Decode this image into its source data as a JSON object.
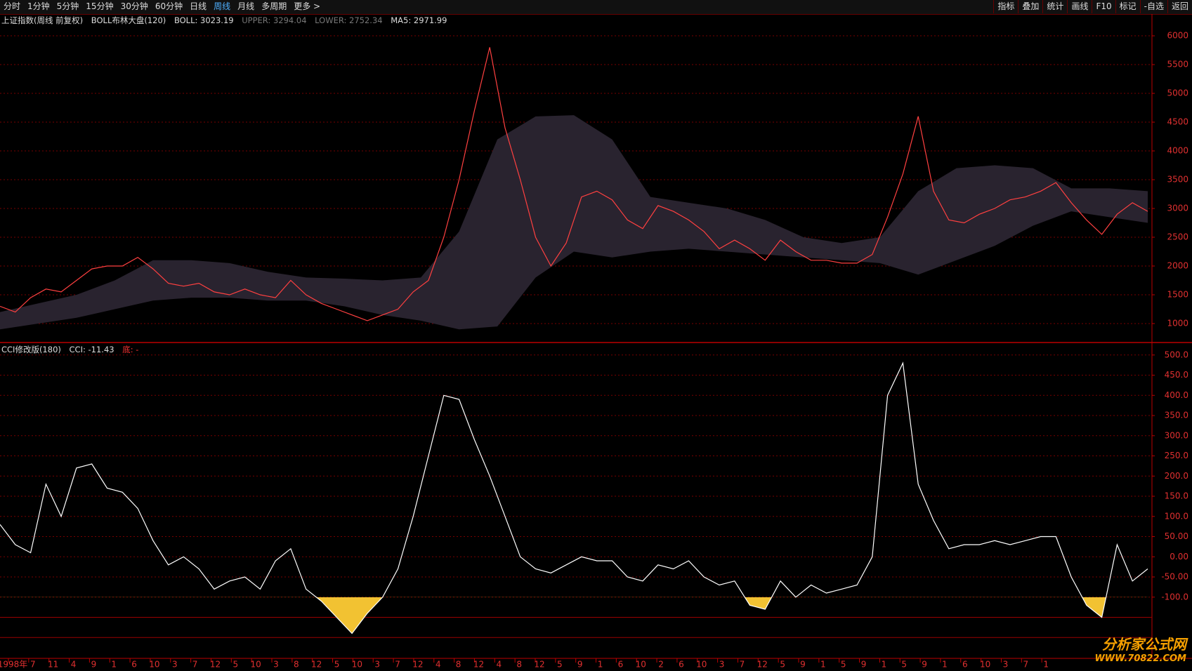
{
  "toolbar": {
    "left": [
      "分时",
      "1分钟",
      "5分钟",
      "15分钟",
      "30分钟",
      "60分钟",
      "日线",
      "周线",
      "月线",
      "多周期",
      "更多 >"
    ],
    "active": 7,
    "right": [
      "指标",
      "叠加",
      "统计",
      "画线",
      "F10",
      "标记",
      "-自选",
      "返回"
    ]
  },
  "upper_info": {
    "name": "上证指数(周线 前复权)",
    "indicator": "BOLL布林大盘(120)",
    "boll": "BOLL: 3023.19",
    "upper": "UPPER: 3294.04",
    "lower": "LOWER: 2752.34",
    "ma5": "MA5: 2971.99"
  },
  "lower_info": {
    "indicator": "CCI修改版(180)",
    "cci": "CCI: -11.43",
    "bottom": "底: -"
  },
  "x_axis": [
    "1998年",
    "7",
    "11",
    "4",
    "9",
    "1",
    "6",
    "10",
    "3",
    "7",
    "12",
    "5",
    "10",
    "3",
    "8",
    "12",
    "5",
    "10",
    "3",
    "7",
    "12",
    "4",
    "8",
    "12",
    "4",
    "8",
    "12",
    "5",
    "9",
    "1",
    "6",
    "10",
    "2",
    "6",
    "10",
    "3",
    "7",
    "12",
    "5",
    "9",
    "1",
    "5",
    "9",
    "1",
    "5",
    "9",
    "1",
    "6",
    "10",
    "3",
    "7",
    "1"
  ],
  "watermark": {
    "title": "分析家公式网",
    "url": "WWW.70822.COM"
  },
  "chart_data": [
    {
      "type": "line",
      "ylim": [
        683,
        6354
      ],
      "yticks": [
        6000,
        5500,
        5000,
        4500,
        4000,
        3500,
        3000,
        2500,
        2000,
        1500,
        1000
      ],
      "grid": true,
      "band": {
        "color": "#29232f",
        "upper": [
          1200,
          1350,
          1500,
          1750,
          2100,
          2100,
          2050,
          1900,
          1800,
          1780,
          1750,
          1800,
          2600,
          4200,
          4600,
          4620,
          4200,
          3200,
          3100,
          3000,
          2800,
          2500,
          2400,
          2500,
          3300,
          3700,
          3750,
          3700,
          3350,
          3350,
          3300
        ],
        "lower": [
          900,
          1000,
          1100,
          1250,
          1400,
          1450,
          1450,
          1400,
          1400,
          1300,
          1150,
          1050,
          900,
          950,
          1800,
          2250,
          2150,
          2250,
          2300,
          2250,
          2200,
          2150,
          2100,
          2050,
          1850,
          2100,
          2350,
          2700,
          2950,
          2850,
          2750
        ]
      },
      "series": [
        {
          "color": "#ff4040",
          "values": [
            1300,
            1200,
            1450,
            1600,
            1550,
            1750,
            1950,
            2000,
            2000,
            2150,
            1950,
            1700,
            1650,
            1700,
            1550,
            1500,
            1600,
            1500,
            1450,
            1750,
            1500,
            1350,
            1250,
            1150,
            1050,
            1150,
            1250,
            1550,
            1750,
            2500,
            3500,
            4700,
            5800,
            4400,
            3500,
            2500,
            2000,
            2400,
            3200,
            3300,
            3150,
            2800,
            2650,
            3050,
            2950,
            2800,
            2600,
            2300,
            2450,
            2300,
            2100,
            2450,
            2250,
            2100,
            2100,
            2050,
            2050,
            2200,
            2850,
            3600,
            4600,
            3300,
            2800,
            2750,
            2900,
            3000,
            3150,
            3200,
            3300,
            3450,
            3100,
            2800,
            2550,
            2900,
            3100,
            2950
          ]
        }
      ]
    },
    {
      "type": "line",
      "ylim": [
        -250,
        524
      ],
      "yticks": [
        {
          "value": 500,
          "label": "500.0"
        },
        {
          "value": 450,
          "label": "450.0"
        },
        {
          "value": 400,
          "label": "400.0"
        },
        {
          "value": 350,
          "label": "350.0"
        },
        {
          "value": 300,
          "label": "300.0"
        },
        {
          "value": 250,
          "label": "250.0"
        },
        {
          "value": 200,
          "label": "200.0"
        },
        {
          "value": 150,
          "label": "150.0"
        },
        {
          "value": 100,
          "label": "100.0"
        },
        {
          "value": 50,
          "label": "50.00"
        },
        {
          "value": 0,
          "label": "0.00"
        },
        {
          "value": -50,
          "label": "-50.00"
        },
        {
          "value": -100,
          "label": "-100.0"
        }
      ],
      "grid": true,
      "hlines": [
        -150,
        -200
      ],
      "fill_below": -100,
      "fill_color": "#f2c232",
      "series": [
        {
          "color": "#ffffff",
          "values": [
            80,
            30,
            10,
            180,
            100,
            220,
            230,
            170,
            160,
            120,
            40,
            -20,
            0,
            -30,
            -80,
            -60,
            -50,
            -80,
            -10,
            20,
            -80,
            -110,
            -150,
            -190,
            -140,
            -100,
            -30,
            100,
            250,
            400,
            390,
            290,
            200,
            100,
            0,
            -30,
            -40,
            -20,
            0,
            -10,
            -10,
            -50,
            -60,
            -20,
            -30,
            -10,
            -50,
            -70,
            -60,
            -120,
            -130,
            -60,
            -100,
            -70,
            -90,
            -80,
            -70,
            0,
            400,
            480,
            180,
            90,
            20,
            30,
            30,
            40,
            30,
            40,
            50,
            50,
            -50,
            -120,
            -150,
            30,
            -60,
            -30
          ]
        }
      ]
    }
  ]
}
